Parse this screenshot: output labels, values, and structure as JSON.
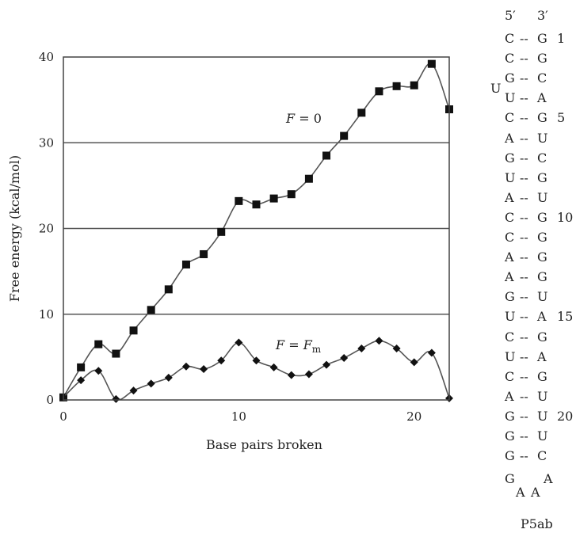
{
  "chart_data": {
    "type": "line",
    "xlabel": "Base pairs broken",
    "ylabel": "Free energy (kcal/mol)",
    "xlim": [
      0,
      22
    ],
    "ylim": [
      0,
      40
    ],
    "x_ticks": [
      "0",
      "10",
      "20"
    ],
    "y_ticks": [
      "0",
      "10",
      "20",
      "30",
      "40"
    ],
    "grid": "horizontal",
    "series": [
      {
        "name": "F = 0",
        "label_main": "F",
        "label_rest": " = 0",
        "marker": "square",
        "x": [
          0,
          1,
          2,
          3,
          4,
          5,
          6,
          7,
          8,
          9,
          10,
          11,
          12,
          13,
          14,
          15,
          16,
          17,
          18,
          19,
          20,
          21,
          22
        ],
        "y": [
          0.3,
          3.8,
          6.5,
          5.4,
          8.1,
          10.5,
          12.9,
          15.8,
          17.0,
          19.6,
          23.2,
          22.8,
          23.5,
          24.0,
          25.8,
          28.5,
          30.8,
          33.5,
          36.0,
          36.6,
          36.7,
          39.2,
          33.9
        ]
      },
      {
        "name": "F = Fm",
        "label_main": "F",
        "label_rest": " = F",
        "label_sub": "m",
        "marker": "diamond",
        "x": [
          0,
          1,
          2,
          3,
          4,
          5,
          6,
          7,
          8,
          9,
          10,
          11,
          12,
          13,
          14,
          15,
          16,
          17,
          18,
          19,
          20,
          21,
          22
        ],
        "y": [
          0.3,
          2.3,
          3.4,
          0.1,
          1.1,
          1.9,
          2.6,
          3.9,
          3.6,
          4.6,
          6.7,
          4.6,
          3.8,
          2.9,
          3.0,
          4.1,
          4.9,
          6.0,
          6.9,
          6.0,
          4.4,
          5.5,
          0.2
        ]
      }
    ]
  },
  "structure": {
    "header": [
      "5′",
      "3′"
    ],
    "pairs": [
      {
        "l": "C",
        "r": "G",
        "n": "1"
      },
      {
        "l": "C",
        "r": "G",
        "n": ""
      },
      {
        "l": "G",
        "r": "C",
        "n": ""
      },
      {
        "l": "U",
        "r": "A",
        "n": ""
      },
      {
        "l": "C",
        "r": "G",
        "n": "5"
      },
      {
        "l": "A",
        "r": "U",
        "n": ""
      },
      {
        "l": "G",
        "r": "C",
        "n": ""
      },
      {
        "l": "U",
        "r": "G",
        "n": ""
      },
      {
        "l": "A",
        "r": "U",
        "n": ""
      },
      {
        "l": "C",
        "r": "G",
        "n": "10"
      },
      {
        "l": "C",
        "r": "G",
        "n": ""
      },
      {
        "l": "A",
        "r": "G",
        "n": ""
      },
      {
        "l": "A",
        "r": "G",
        "n": ""
      },
      {
        "l": "G",
        "r": "U",
        "n": ""
      },
      {
        "l": "U",
        "r": "A",
        "n": "15"
      },
      {
        "l": "C",
        "r": "G",
        "n": ""
      },
      {
        "l": "U",
        "r": "A",
        "n": ""
      },
      {
        "l": "C",
        "r": "G",
        "n": ""
      },
      {
        "l": "A",
        "r": "U",
        "n": ""
      },
      {
        "l": "G",
        "r": "U",
        "n": "20"
      },
      {
        "l": "G",
        "r": "U",
        "n": ""
      },
      {
        "l": "G",
        "r": "C",
        "n": ""
      }
    ],
    "bulge": "U",
    "dash": "--",
    "loop": [
      "G",
      "A",
      "A",
      "A"
    ],
    "name": "P5ab"
  }
}
